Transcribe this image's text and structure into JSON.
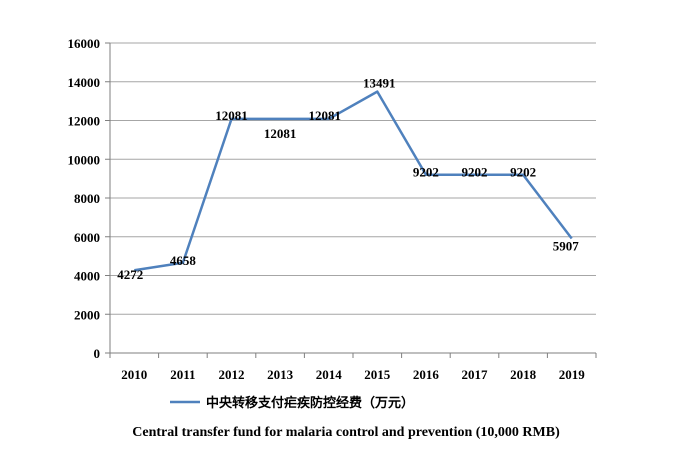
{
  "chart_data": {
    "type": "line",
    "categories": [
      "2010",
      "2011",
      "2012",
      "2013",
      "2014",
      "2015",
      "2016",
      "2017",
      "2018",
      "2019"
    ],
    "series": [
      {
        "name": "中央转移支付疟疾防控经费（万元）",
        "values": [
          4272,
          4658,
          12081,
          12081,
          12081,
          13491,
          9202,
          9202,
          9202,
          5907
        ],
        "color": "#4f81bd"
      }
    ],
    "ylim": [
      0,
      16000
    ],
    "yticks": [
      0,
      2000,
      4000,
      6000,
      8000,
      10000,
      12000,
      14000,
      16000
    ],
    "grid": true,
    "legend_position": "bottom",
    "caption": "Central transfer fund for malaria control and prevention (10,000 RMB)"
  }
}
